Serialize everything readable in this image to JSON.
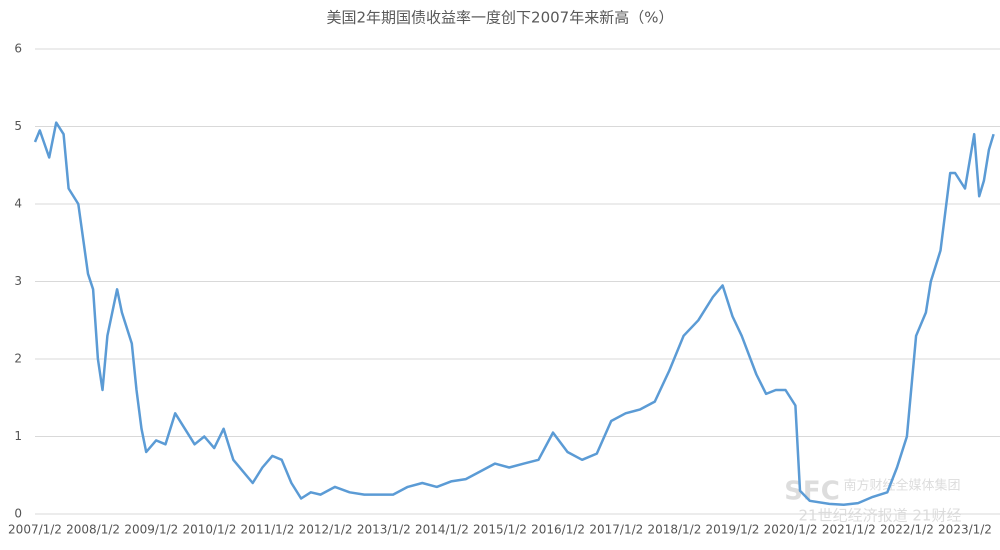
{
  "chart_data": {
    "type": "line",
    "title": "美国2年期国债收益率一度创下2007年来新高（%）",
    "watermark": [
      "SFC",
      "南方财经全媒体集团",
      "21世纪经济报道 21财经"
    ],
    "x": [
      "2007/1/2",
      "2007/2/1",
      "2007/4/1",
      "2007/5/15",
      "2007/7/1",
      "2007/8/1",
      "2007/10/1",
      "2007/12/1",
      "2008/1/2",
      "2008/2/1",
      "2008/3/1",
      "2008/4/1",
      "2008/6/1",
      "2008/7/1",
      "2008/9/1",
      "2008/10/1",
      "2008/11/1",
      "2008/12/1",
      "2009/2/1",
      "2009/4/1",
      "2009/6/1",
      "2009/8/1",
      "2009/10/1",
      "2009/12/1",
      "2010/2/1",
      "2010/4/1",
      "2010/6/1",
      "2010/8/1",
      "2010/10/1",
      "2010/12/1",
      "2011/2/1",
      "2011/4/1",
      "2011/6/1",
      "2011/8/1",
      "2011/10/1",
      "2011/12/1",
      "2012/3/1",
      "2012/6/1",
      "2012/9/1",
      "2012/12/1",
      "2013/3/1",
      "2013/6/1",
      "2013/9/1",
      "2013/12/1",
      "2014/3/1",
      "2014/6/1",
      "2014/9/1",
      "2014/12/1",
      "2015/3/1",
      "2015/6/1",
      "2015/9/1",
      "2015/12/1",
      "2016/3/1",
      "2016/6/1",
      "2016/9/1",
      "2016/12/1",
      "2017/3/1",
      "2017/6/1",
      "2017/9/1",
      "2017/12/1",
      "2018/3/1",
      "2018/6/1",
      "2018/9/1",
      "2018/11/1",
      "2019/1/2",
      "2019/3/1",
      "2019/6/1",
      "2019/8/1",
      "2019/10/1",
      "2019/12/1",
      "2020/2/1",
      "2020/3/1",
      "2020/5/1",
      "2020/9/1",
      "2020/12/1",
      "2021/3/1",
      "2021/6/1",
      "2021/9/1",
      "2021/11/1",
      "2022/1/2",
      "2022/3/1",
      "2022/5/1",
      "2022/6/1",
      "2022/8/1",
      "2022/10/1",
      "2022/11/1",
      "2023/1/2",
      "2023/3/1",
      "2023/4/1",
      "2023/5/1",
      "2023/6/1",
      "2023/7/1"
    ],
    "series": [
      {
        "name": "美国2年期国债收益率",
        "color": "#5b9bd5",
        "values": [
          4.8,
          4.95,
          4.6,
          5.05,
          4.9,
          4.2,
          4.0,
          3.1,
          2.9,
          2.0,
          1.6,
          2.3,
          2.9,
          2.6,
          2.2,
          1.6,
          1.1,
          0.8,
          0.95,
          0.9,
          1.3,
          1.1,
          0.9,
          1.0,
          0.85,
          1.1,
          0.7,
          0.55,
          0.4,
          0.6,
          0.75,
          0.7,
          0.4,
          0.2,
          0.28,
          0.25,
          0.35,
          0.28,
          0.25,
          0.25,
          0.25,
          0.35,
          0.4,
          0.35,
          0.42,
          0.45,
          0.55,
          0.65,
          0.6,
          0.65,
          0.7,
          1.05,
          0.8,
          0.7,
          0.78,
          1.2,
          1.3,
          1.35,
          1.45,
          1.85,
          2.3,
          2.5,
          2.8,
          2.95,
          2.55,
          2.3,
          1.8,
          1.55,
          1.6,
          1.6,
          1.4,
          0.3,
          0.17,
          0.13,
          0.12,
          0.14,
          0.22,
          0.28,
          0.6,
          1.0,
          2.3,
          2.6,
          3.0,
          3.4,
          4.4,
          4.4,
          4.2,
          4.9,
          4.1,
          4.3,
          4.7,
          4.9
        ]
      }
    ],
    "xticks": [
      "2007/1/2",
      "2008/1/2",
      "2009/1/2",
      "2010/1/2",
      "2011/1/2",
      "2012/1/2",
      "2013/1/2",
      "2014/1/2",
      "2015/1/2",
      "2016/1/2",
      "2017/1/2",
      "2018/1/2",
      "2019/1/2",
      "2020/1/2",
      "2021/1/2",
      "2022/1/2",
      "2023/1/2"
    ],
    "ylim": [
      0,
      6
    ],
    "yticks": [
      0,
      1,
      2,
      3,
      4,
      5,
      6
    ],
    "grid": true
  }
}
